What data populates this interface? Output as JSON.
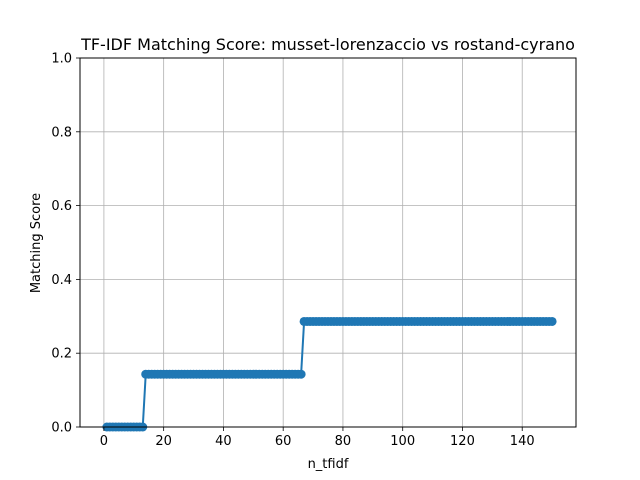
{
  "chart_data": {
    "type": "line",
    "title": "TF-IDF Matching Score: musset-lorenzaccio vs rostand-cyrano",
    "xlabel": "n_tfidf",
    "ylabel": "Matching Score",
    "xlim": [
      -8,
      158
    ],
    "ylim": [
      0,
      1
    ],
    "xticks": [
      0,
      20,
      40,
      60,
      80,
      100,
      120,
      140
    ],
    "yticks": [
      0.0,
      0.2,
      0.4,
      0.6,
      0.8,
      1.0
    ],
    "ytick_labels": [
      "0.0",
      "0.2",
      "0.4",
      "0.6",
      "0.8",
      "1.0"
    ],
    "grid": true,
    "series": [
      {
        "color": "#1f77b4",
        "marker": "circle",
        "segments": [
          {
            "x_start": 1,
            "x_end": 13,
            "y": 0.0
          },
          {
            "x_start": 14,
            "x_end": 66,
            "y": 0.143
          },
          {
            "x_start": 67,
            "x_end": 150,
            "y": 0.286
          }
        ]
      }
    ]
  }
}
